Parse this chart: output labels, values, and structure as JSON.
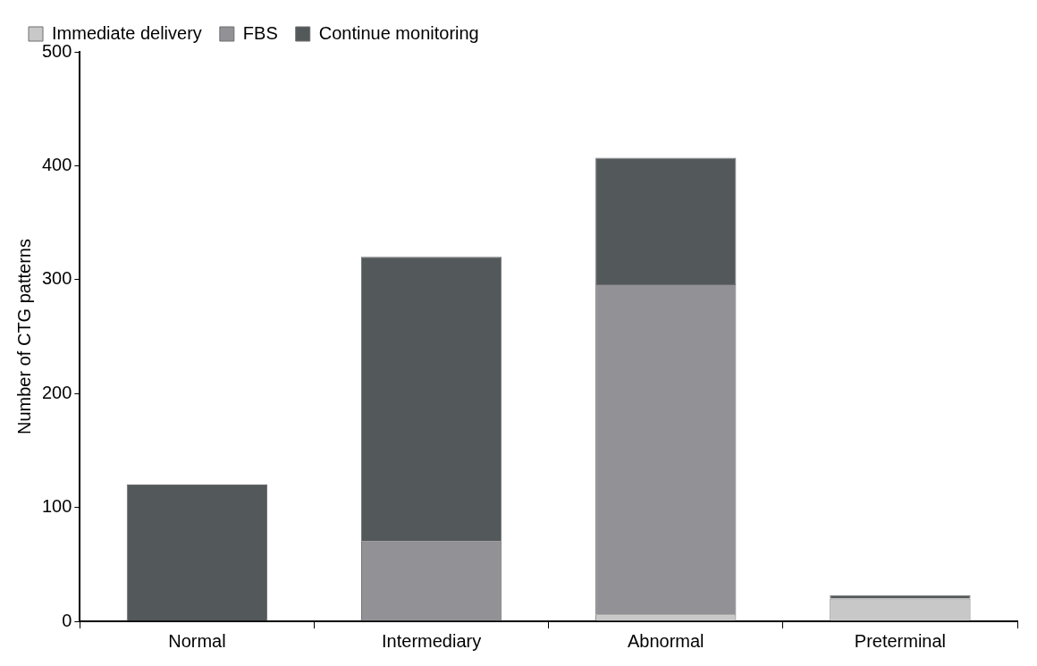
{
  "chart_data": {
    "type": "bar",
    "stacked": true,
    "ylabel": "Number of CTG patterns",
    "categories": [
      "Normal",
      "Intermediary",
      "Abnormal",
      "Preterminal"
    ],
    "series": [
      {
        "name": "Immediate delivery",
        "color": "#c8c8c8",
        "values": [
          0,
          0,
          6,
          20
        ]
      },
      {
        "name": "FBS",
        "color": "#929196",
        "values": [
          0,
          70,
          290,
          0
        ]
      },
      {
        "name": "Continue monitoring",
        "color": "#53585a",
        "values": [
          120,
          250,
          111,
          3
        ]
      }
    ],
    "ylim": [
      0,
      500
    ],
    "yticks": [
      0,
      100,
      200,
      300,
      400,
      500
    ],
    "grid": false,
    "legend": "top left"
  }
}
